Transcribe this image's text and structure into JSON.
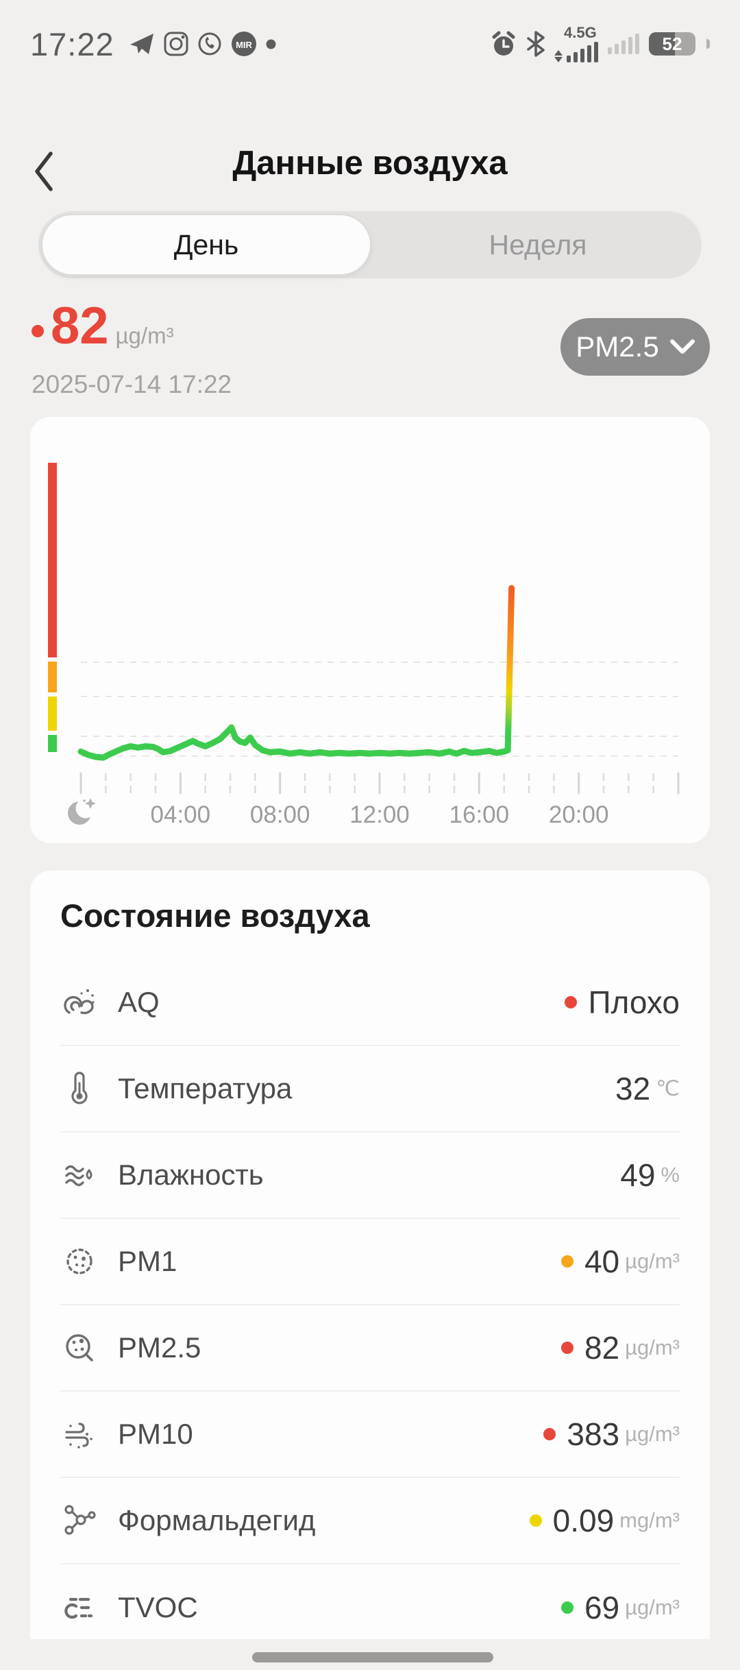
{
  "status_bar": {
    "time": "17:22",
    "network_label": "4.5G",
    "battery_percent": "52",
    "left_icons": [
      "telegram-icon",
      "instagram-icon",
      "whatsapp-icon",
      "mir-badge-icon",
      "notification-dot-icon"
    ],
    "right_icons": [
      "alarm-icon",
      "bluetooth-icon",
      "signal-bars",
      "signal-bars-secondary",
      "battery-indicator"
    ]
  },
  "header": {
    "title": "Данные воздуха"
  },
  "tabs": {
    "day_label": "День",
    "week_label": "Неделя",
    "active": "day"
  },
  "reading": {
    "value": "82",
    "unit": "µg/m³",
    "timestamp": "2025-07-14 17:22",
    "selector_label": "PM2.5",
    "dot_color": "#e8463a"
  },
  "chart_data": {
    "type": "line",
    "title": "",
    "xlabel": "",
    "ylabel": "",
    "x_unit": "hour-of-day",
    "x_range_hours": [
      0,
      24
    ],
    "x_tick_labels": [
      "04:00",
      "08:00",
      "12:00",
      "16:00",
      "20:00"
    ],
    "x_tick_hours": [
      4,
      8,
      12,
      16,
      20
    ],
    "x_axis_start_icon": "moon-icon",
    "grid": "dashed horizontal lines at band boundaries",
    "legend": "none",
    "level_colors": {
      "good": "#3dcb4e",
      "moderate": "#eed500",
      "poor": "#f8a51b",
      "bad": "#e8463a"
    },
    "series": [
      {
        "name": "PM2.5",
        "unit": "µg/m³",
        "points": [
          [
            0.0,
            12
          ],
          [
            0.3,
            7
          ],
          [
            0.6,
            4
          ],
          [
            0.9,
            3
          ],
          [
            1.1,
            7
          ],
          [
            1.4,
            12
          ],
          [
            1.7,
            17
          ],
          [
            2.0,
            20
          ],
          [
            2.3,
            18
          ],
          [
            2.6,
            20
          ],
          [
            2.9,
            19
          ],
          [
            3.1,
            16
          ],
          [
            3.3,
            11
          ],
          [
            3.6,
            13
          ],
          [
            3.9,
            18
          ],
          [
            4.2,
            23
          ],
          [
            4.5,
            28
          ],
          [
            4.7,
            24
          ],
          [
            5.0,
            20
          ],
          [
            5.3,
            25
          ],
          [
            5.6,
            31
          ],
          [
            5.9,
            40
          ],
          [
            6.05,
            44
          ],
          [
            6.2,
            33
          ],
          [
            6.4,
            27
          ],
          [
            6.6,
            25
          ],
          [
            6.8,
            33
          ],
          [
            7.0,
            22
          ],
          [
            7.3,
            14
          ],
          [
            7.6,
            11
          ],
          [
            8.0,
            12
          ],
          [
            8.4,
            9
          ],
          [
            8.8,
            11
          ],
          [
            9.2,
            9
          ],
          [
            9.6,
            11
          ],
          [
            10.0,
            9
          ],
          [
            10.4,
            10
          ],
          [
            10.8,
            9
          ],
          [
            11.2,
            10
          ],
          [
            11.6,
            9
          ],
          [
            12.0,
            10
          ],
          [
            12.4,
            9
          ],
          [
            12.8,
            10
          ],
          [
            13.2,
            9
          ],
          [
            13.6,
            10
          ],
          [
            14.0,
            11
          ],
          [
            14.4,
            9
          ],
          [
            14.8,
            12
          ],
          [
            15.1,
            9
          ],
          [
            15.4,
            13
          ],
          [
            15.7,
            10
          ],
          [
            16.0,
            11
          ],
          [
            16.4,
            13
          ],
          [
            16.7,
            10
          ],
          [
            17.0,
            12
          ],
          [
            17.15,
            14
          ],
          [
            17.3,
            258
          ]
        ]
      }
    ]
  },
  "air_state": {
    "title": "Состояние воздуха",
    "rows": [
      {
        "icon": "air-quality-icon",
        "label": "AQ",
        "dot": "#e8463a",
        "value": "Плохо",
        "unit": ""
      },
      {
        "icon": "thermometer-icon",
        "label": "Температура",
        "dot": "",
        "value": "32",
        "unit": "℃"
      },
      {
        "icon": "humidity-icon",
        "label": "Влажность",
        "dot": "",
        "value": "49",
        "unit": "%"
      },
      {
        "icon": "pm1-icon",
        "label": "PM1",
        "dot": "#f8a51b",
        "value": "40",
        "unit": "µg/m³"
      },
      {
        "icon": "pm25-icon",
        "label": "PM2.5",
        "dot": "#e8463a",
        "value": "82",
        "unit": "µg/m³"
      },
      {
        "icon": "pm10-icon",
        "label": "PM10",
        "dot": "#e8463a",
        "value": "383",
        "unit": "µg/m³"
      },
      {
        "icon": "formaldehyde-icon",
        "label": "Формальдегид",
        "dot": "#eed500",
        "value": "0.09",
        "unit": "mg/m³"
      },
      {
        "icon": "tvoc-icon",
        "label": "TVOC",
        "dot": "#3dcb4e",
        "value": "69",
        "unit": "µg/m³"
      }
    ]
  }
}
